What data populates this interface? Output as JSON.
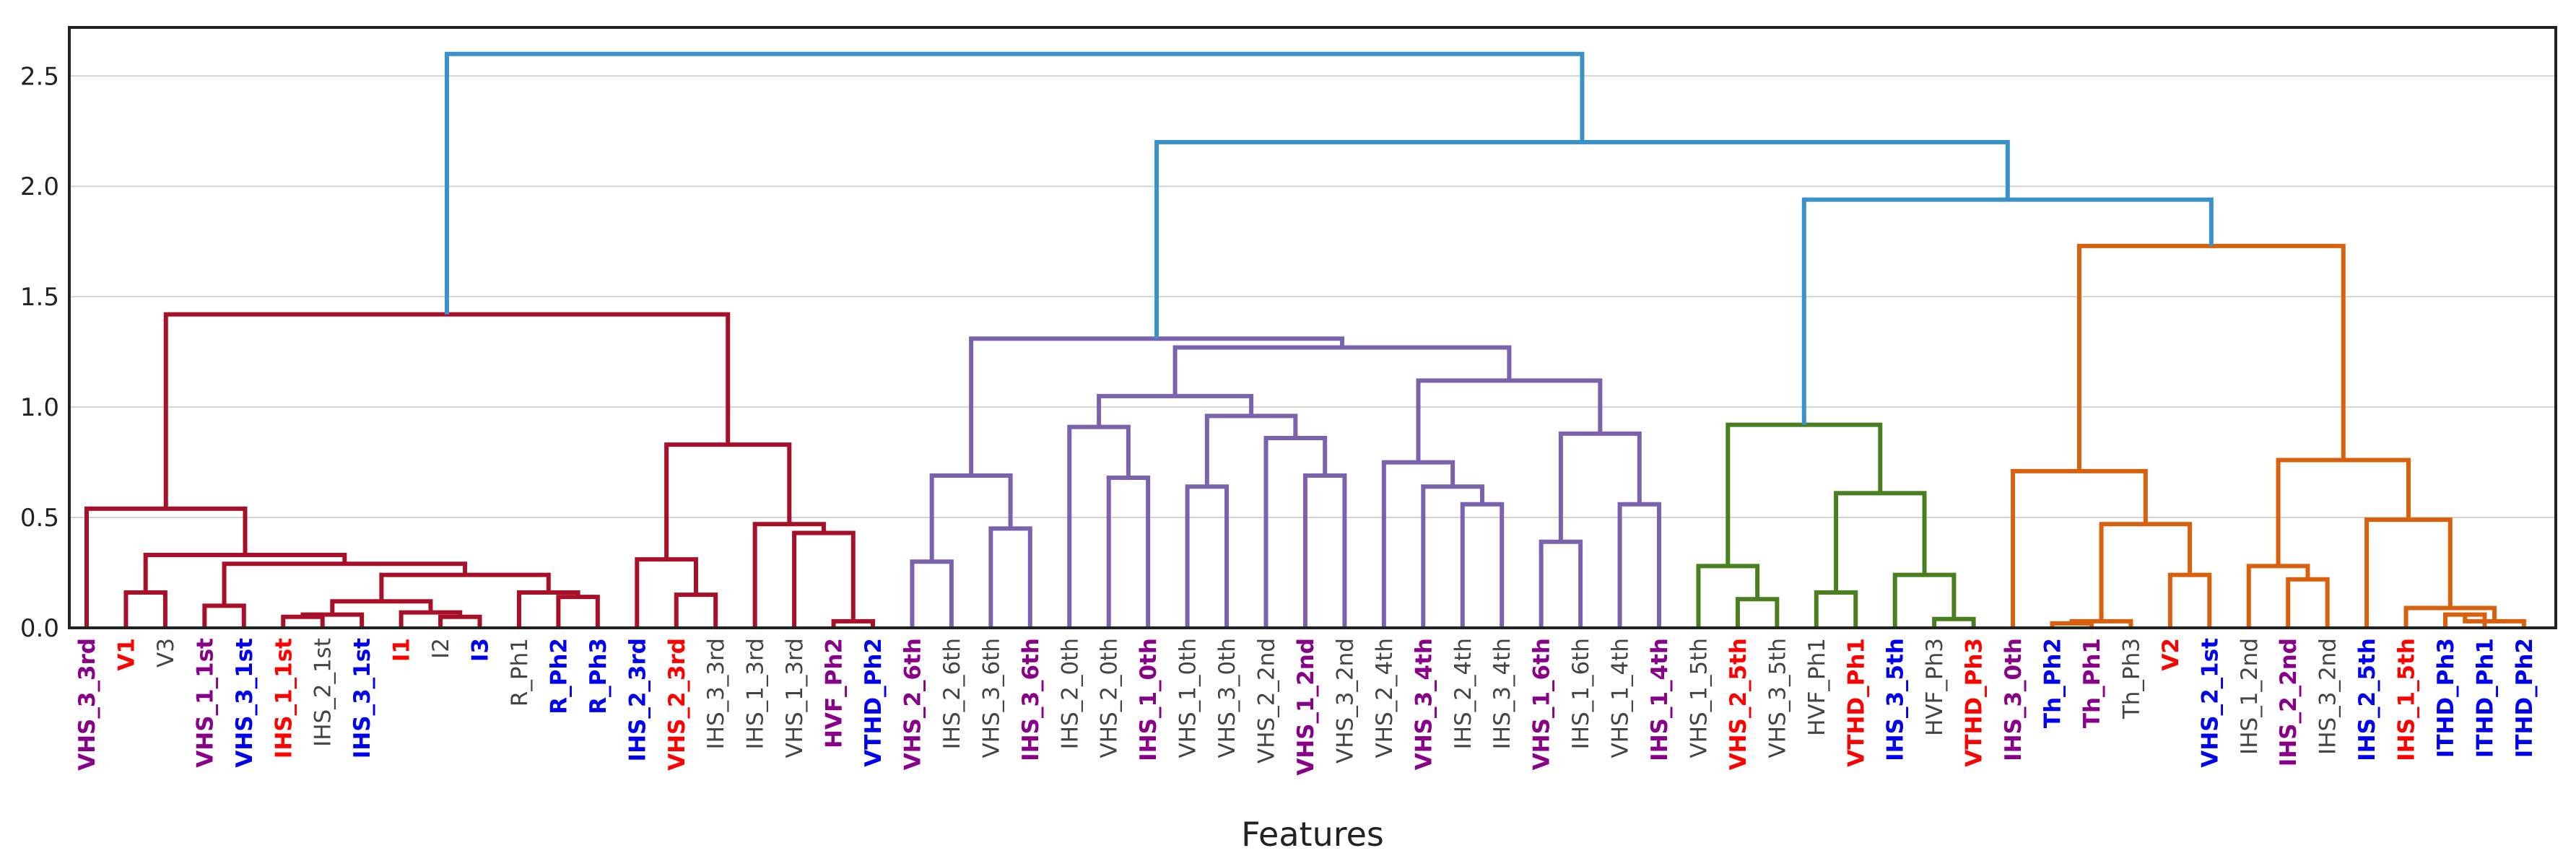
{
  "chart_data": {
    "type": "dendrogram",
    "title": "",
    "xlabel": "Features",
    "ylabel": "",
    "ylim": [
      0,
      2.72
    ],
    "yticks": [
      "0.0",
      "0.5",
      "1.0",
      "1.5",
      "2.0",
      "2.5"
    ],
    "ytick_values": [
      0,
      0.5,
      1.0,
      1.5,
      2.0,
      2.5
    ],
    "grid": "horizontal",
    "colors": {
      "cluster_red": "#a8102a",
      "cluster_purple": "#7b62ae",
      "cluster_green": "#4a7f20",
      "cluster_orange": "#d9600c",
      "root_blue": "#3a92c8",
      "label_purple": "#880088",
      "label_red": "#ff0000",
      "label_blue": "#0000ee",
      "label_gray": "#444444"
    },
    "leaves": [
      {
        "label": "VHS_3_3rd",
        "color": "purple",
        "bold": true
      },
      {
        "label": "V1",
        "color": "red",
        "bold": true
      },
      {
        "label": "V3",
        "color": "gray",
        "bold": false
      },
      {
        "label": "VHS_1_1st",
        "color": "purple",
        "bold": true
      },
      {
        "label": "VHS_3_1st",
        "color": "blue",
        "bold": true
      },
      {
        "label": "IHS_1_1st",
        "color": "red",
        "bold": true
      },
      {
        "label": "IHS_2_1st",
        "color": "gray",
        "bold": false
      },
      {
        "label": "IHS_3_1st",
        "color": "blue",
        "bold": true
      },
      {
        "label": "I1",
        "color": "red",
        "bold": true
      },
      {
        "label": "I2",
        "color": "gray",
        "bold": false
      },
      {
        "label": "I3",
        "color": "blue",
        "bold": true
      },
      {
        "label": "R_Ph1",
        "color": "gray",
        "bold": false
      },
      {
        "label": "R_Ph2",
        "color": "blue",
        "bold": true
      },
      {
        "label": "R_Ph3",
        "color": "blue",
        "bold": true
      },
      {
        "label": "IHS_2_3rd",
        "color": "blue",
        "bold": true
      },
      {
        "label": "VHS_2_3rd",
        "color": "red",
        "bold": true
      },
      {
        "label": "IHS_3_3rd",
        "color": "gray",
        "bold": false
      },
      {
        "label": "IHS_1_3rd",
        "color": "gray",
        "bold": false
      },
      {
        "label": "VHS_1_3rd",
        "color": "gray",
        "bold": false
      },
      {
        "label": "HVF_Ph2",
        "color": "purple",
        "bold": true
      },
      {
        "label": "VTHD_Ph2",
        "color": "blue",
        "bold": true
      },
      {
        "label": "VHS_2_6th",
        "color": "purple",
        "bold": true
      },
      {
        "label": "IHS_2_6th",
        "color": "gray",
        "bold": false
      },
      {
        "label": "VHS_3_6th",
        "color": "gray",
        "bold": false
      },
      {
        "label": "IHS_3_6th",
        "color": "purple",
        "bold": true
      },
      {
        "label": "IHS_2_0th",
        "color": "gray",
        "bold": false
      },
      {
        "label": "VHS_2_0th",
        "color": "gray",
        "bold": false
      },
      {
        "label": "IHS_1_0th",
        "color": "purple",
        "bold": true
      },
      {
        "label": "VHS_1_0th",
        "color": "gray",
        "bold": false
      },
      {
        "label": "VHS_3_0th",
        "color": "gray",
        "bold": false
      },
      {
        "label": "VHS_2_2nd",
        "color": "gray",
        "bold": false
      },
      {
        "label": "VHS_1_2nd",
        "color": "purple",
        "bold": true
      },
      {
        "label": "VHS_3_2nd",
        "color": "gray",
        "bold": false
      },
      {
        "label": "VHS_2_4th",
        "color": "gray",
        "bold": false
      },
      {
        "label": "VHS_3_4th",
        "color": "purple",
        "bold": true
      },
      {
        "label": "IHS_2_4th",
        "color": "gray",
        "bold": false
      },
      {
        "label": "IHS_3_4th",
        "color": "gray",
        "bold": false
      },
      {
        "label": "VHS_1_6th",
        "color": "purple",
        "bold": true
      },
      {
        "label": "IHS_1_6th",
        "color": "gray",
        "bold": false
      },
      {
        "label": "VHS_1_4th",
        "color": "gray",
        "bold": false
      },
      {
        "label": "IHS_1_4th",
        "color": "purple",
        "bold": true
      },
      {
        "label": "VHS_1_5th",
        "color": "gray",
        "bold": false
      },
      {
        "label": "VHS_2_5th",
        "color": "red",
        "bold": true
      },
      {
        "label": "VHS_3_5th",
        "color": "gray",
        "bold": false
      },
      {
        "label": "HVF_Ph1",
        "color": "gray",
        "bold": false
      },
      {
        "label": "VTHD_Ph1",
        "color": "red",
        "bold": true
      },
      {
        "label": "IHS_3_5th",
        "color": "blue",
        "bold": true
      },
      {
        "label": "HVF_Ph3",
        "color": "gray",
        "bold": false
      },
      {
        "label": "VTHD_Ph3",
        "color": "red",
        "bold": true
      },
      {
        "label": "IHS_3_0th",
        "color": "purple",
        "bold": true
      },
      {
        "label": "Th_Ph2",
        "color": "blue",
        "bold": true
      },
      {
        "label": "Th_Ph1",
        "color": "purple",
        "bold": true
      },
      {
        "label": "Th_Ph3",
        "color": "gray",
        "bold": false
      },
      {
        "label": "V2",
        "color": "red",
        "bold": true
      },
      {
        "label": "VHS_2_1st",
        "color": "blue",
        "bold": true
      },
      {
        "label": "IHS_1_2nd",
        "color": "gray",
        "bold": false
      },
      {
        "label": "IHS_2_2nd",
        "color": "purple",
        "bold": true
      },
      {
        "label": "IHS_3_2nd",
        "color": "gray",
        "bold": false
      },
      {
        "label": "IHS_2_5th",
        "color": "blue",
        "bold": true
      },
      {
        "label": "IHS_1_5th",
        "color": "red",
        "bold": true
      },
      {
        "label": "ITHD_Ph3",
        "color": "blue",
        "bold": true
      },
      {
        "label": "ITHD_Ph1",
        "color": "blue",
        "bold": true
      },
      {
        "label": "ITHD_Ph2",
        "color": "blue",
        "bold": true
      }
    ],
    "merges": [
      {
        "left": 1,
        "right": 2,
        "height": 0.16,
        "cluster": "red"
      },
      {
        "left": 3,
        "right": 4,
        "height": 0.1,
        "cluster": "red"
      },
      {
        "left": 5,
        "right": 6,
        "height": 0.05,
        "cluster": "red"
      },
      {
        "left": "m2",
        "right": 7,
        "height": 0.06,
        "cluster": "red"
      },
      {
        "left": 9,
        "right": 10,
        "height": 0.05,
        "cluster": "red"
      },
      {
        "left": 8,
        "right": "m4",
        "height": 0.07,
        "cluster": "red"
      },
      {
        "left": "m3",
        "right": "m5",
        "height": 0.12,
        "cluster": "red"
      },
      {
        "left": 12,
        "right": 13,
        "height": 0.14,
        "cluster": "red"
      },
      {
        "left": 11,
        "right": "m7",
        "height": 0.16,
        "cluster": "red"
      },
      {
        "left": "m6",
        "right": "m8",
        "height": 0.24,
        "cluster": "red"
      },
      {
        "left": "m1",
        "right": "m9",
        "height": 0.29,
        "cluster": "red"
      },
      {
        "left": "m0",
        "right": "m10",
        "height": 0.33,
        "cluster": "red"
      },
      {
        "left": 0,
        "right": "m11",
        "height": 0.54,
        "cluster": "red"
      },
      {
        "left": 15,
        "right": 16,
        "height": 0.15,
        "cluster": "red"
      },
      {
        "left": 14,
        "right": "m13",
        "height": 0.31,
        "cluster": "red"
      },
      {
        "left": 19,
        "right": 20,
        "height": 0.03,
        "cluster": "red"
      },
      {
        "left": 18,
        "right": "m15",
        "height": 0.43,
        "cluster": "red"
      },
      {
        "left": 17,
        "right": "m16",
        "height": 0.47,
        "cluster": "red"
      },
      {
        "left": "m14",
        "right": "m17",
        "height": 0.83,
        "cluster": "red"
      },
      {
        "left": "m12",
        "right": "m18",
        "height": 1.42,
        "cluster": "red"
      },
      {
        "left": 21,
        "right": 22,
        "height": 0.3,
        "cluster": "purple"
      },
      {
        "left": 23,
        "right": 24,
        "height": 0.45,
        "cluster": "purple"
      },
      {
        "left": "m20",
        "right": "m21",
        "height": 0.69,
        "cluster": "purple"
      },
      {
        "left": 26,
        "right": 27,
        "height": 0.68,
        "cluster": "purple"
      },
      {
        "left": 25,
        "right": "m23",
        "height": 0.91,
        "cluster": "purple"
      },
      {
        "left": 28,
        "right": 29,
        "height": 0.64,
        "cluster": "purple"
      },
      {
        "left": 31,
        "right": 32,
        "height": 0.69,
        "cluster": "purple"
      },
      {
        "left": 30,
        "right": "m26",
        "height": 0.86,
        "cluster": "purple"
      },
      {
        "left": "m25",
        "right": "m27",
        "height": 0.96,
        "cluster": "purple"
      },
      {
        "left": "m24",
        "right": "m28",
        "height": 1.05,
        "cluster": "purple"
      },
      {
        "left": 35,
        "right": 36,
        "height": 0.56,
        "cluster": "purple"
      },
      {
        "left": 34,
        "right": "m30",
        "height": 0.64,
        "cluster": "purple"
      },
      {
        "left": 33,
        "right": "m31",
        "height": 0.75,
        "cluster": "purple"
      },
      {
        "left": 37,
        "right": 38,
        "height": 0.39,
        "cluster": "purple"
      },
      {
        "left": 39,
        "right": 40,
        "height": 0.56,
        "cluster": "purple"
      },
      {
        "left": "m33",
        "right": "m34",
        "height": 0.88,
        "cluster": "purple"
      },
      {
        "left": "m32",
        "right": "m35",
        "height": 1.12,
        "cluster": "purple"
      },
      {
        "left": "m29",
        "right": "m36",
        "height": 1.27,
        "cluster": "purple"
      },
      {
        "left": "m22",
        "right": "m37",
        "height": 1.31,
        "cluster": "purple"
      },
      {
        "left": 42,
        "right": 43,
        "height": 0.13,
        "cluster": "green"
      },
      {
        "left": 41,
        "right": "m39",
        "height": 0.28,
        "cluster": "green"
      },
      {
        "left": 44,
        "right": 45,
        "height": 0.16,
        "cluster": "green"
      },
      {
        "left": 47,
        "right": 48,
        "height": 0.04,
        "cluster": "green"
      },
      {
        "left": 46,
        "right": "m42",
        "height": 0.24,
        "cluster": "green"
      },
      {
        "left": "m41",
        "right": "m43",
        "height": 0.61,
        "cluster": "green"
      },
      {
        "left": "m40",
        "right": "m44",
        "height": 0.92,
        "cluster": "green"
      },
      {
        "left": 50,
        "right": 51,
        "height": 0.02,
        "cluster": "orange"
      },
      {
        "left": 52,
        "right": "m46",
        "height": 0.03,
        "cluster": "orange"
      },
      {
        "left": 53,
        "right": 54,
        "height": 0.24,
        "cluster": "orange"
      },
      {
        "left": "m47",
        "right": "m48",
        "height": 0.47,
        "cluster": "orange"
      },
      {
        "left": 49,
        "right": "m49",
        "height": 0.71,
        "cluster": "orange"
      },
      {
        "left": 56,
        "right": 57,
        "height": 0.22,
        "cluster": "orange"
      },
      {
        "left": 55,
        "right": "m51",
        "height": 0.28,
        "cluster": "orange"
      },
      {
        "left": 60,
        "right": 61,
        "height": 0.06,
        "cluster": "orange"
      },
      {
        "left": 62,
        "right": "m53",
        "height": 0.03,
        "cluster": "orange"
      },
      {
        "left": 59,
        "right": "m54",
        "height": 0.09,
        "cluster": "orange"
      },
      {
        "left": 58,
        "right": "m55",
        "height": 0.49,
        "cluster": "orange"
      },
      {
        "left": "m52",
        "right": "m56",
        "height": 0.76,
        "cluster": "orange"
      },
      {
        "left": "m50",
        "right": "m57",
        "height": 1.73,
        "cluster": "orange"
      },
      {
        "left": "m45",
        "right": "m58",
        "height": 1.94,
        "cluster": "root"
      },
      {
        "left": "m38",
        "right": "m59",
        "height": 2.2,
        "cluster": "root"
      },
      {
        "left": "m19",
        "right": "m60",
        "height": 2.6,
        "cluster": "root"
      }
    ]
  }
}
